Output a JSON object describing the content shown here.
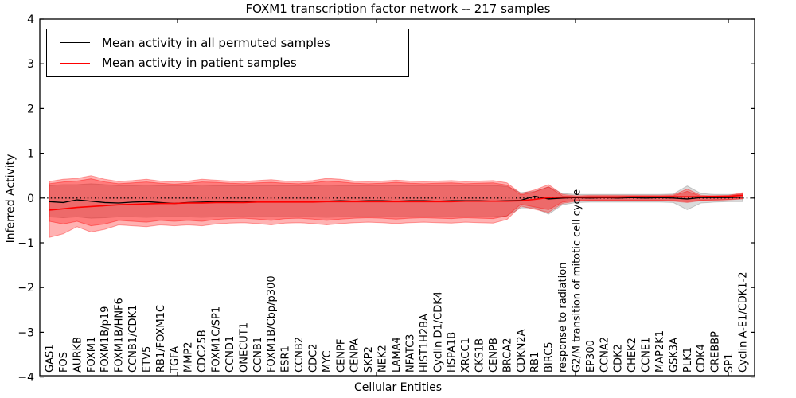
{
  "title": "FOXM1 transcription factor network -- 217 samples",
  "axes": {
    "xlabel": "Cellular Entities",
    "ylabel": "Inferred Activity",
    "y_ticks": [
      -4,
      -3,
      -2,
      -1,
      0,
      1,
      2,
      3,
      4
    ],
    "ylim": [
      -4,
      4
    ],
    "zero_line_style": "dotted"
  },
  "legend": {
    "entries": [
      {
        "label": "Mean activity in all permuted samples",
        "color": "#000000"
      },
      {
        "label": "Mean activity in patient samples",
        "color": "#ff0000"
      }
    ]
  },
  "colors": {
    "permuted_line": "#000000",
    "patient_line": "#ff0000",
    "patient_band_fill": "rgba(255,0,0,0.30)",
    "permuted_band_fill": "rgba(0,0,0,0.14)",
    "frame": "#000000"
  },
  "chart_data": {
    "type": "line",
    "title": "FOXM1 transcription factor network -- 217 samples",
    "xlabel": "Cellular Entities",
    "ylabel": "Inferred Activity",
    "ylim": [
      -4,
      4
    ],
    "grid": false,
    "legend_position": "upper left",
    "x_categories": [
      "GAS1",
      "FOS",
      "AURKB",
      "FOXM1",
      "FOXM1B/p19",
      "FOXM1B/HNF6",
      "CCNB1/CDK1",
      "ETV5",
      "RB1/FOXM1C",
      "TGFA",
      "MMP2",
      "CDC25B",
      "FOXM1C/SP1",
      "CCND1",
      "ONECUT1",
      "CCNB1",
      "FOXM1B/Cbp/p300",
      "ESR1",
      "CCNB2",
      "CDC2",
      "MYC",
      "CENPF",
      "CENPA",
      "SKP2",
      "NEK2",
      "LAMA4",
      "NFATC3",
      "HIST1H2BA",
      "Cyclin D1/CDK4",
      "HSPA1B",
      "XRCC1",
      "CKS1B",
      "CENPB",
      "BRCA2",
      "CDKN2A",
      "RB1",
      "BIRC5",
      "response to radiation",
      "G2/M transition of mitotic cell cycle",
      "EP300",
      "CCNA2",
      "CDK2",
      "CHEK2",
      "CCNE1",
      "MAP2K1",
      "GSK3A",
      "PLK1",
      "CDK4",
      "CREBBP",
      "SP1",
      "Cyclin A-E1/CDK1-2"
    ],
    "series": [
      {
        "name": "Mean activity in all permuted samples",
        "color": "#000000",
        "values": [
          -0.08,
          -0.1,
          -0.04,
          -0.07,
          -0.1,
          -0.11,
          -0.09,
          -0.08,
          -0.1,
          -0.12,
          -0.1,
          -0.09,
          -0.08,
          -0.08,
          -0.07,
          -0.08,
          -0.07,
          -0.08,
          -0.07,
          -0.08,
          -0.07,
          -0.06,
          -0.07,
          -0.06,
          -0.06,
          -0.07,
          -0.06,
          -0.06,
          -0.07,
          -0.06,
          -0.06,
          -0.06,
          -0.07,
          -0.06,
          -0.05,
          0.04,
          -0.02,
          0.0,
          0.01,
          0.0,
          0.01,
          0.0,
          0.01,
          0.0,
          0.01,
          0.0,
          -0.02,
          0.01,
          0.01,
          0.01,
          0.02
        ]
      },
      {
        "name": "Mean activity in patient samples",
        "color": "#ff0000",
        "values": [
          -0.27,
          -0.24,
          -0.21,
          -0.19,
          -0.17,
          -0.15,
          -0.14,
          -0.13,
          -0.12,
          -0.12,
          -0.11,
          -0.11,
          -0.1,
          -0.1,
          -0.1,
          -0.09,
          -0.09,
          -0.09,
          -0.09,
          -0.09,
          -0.08,
          -0.08,
          -0.08,
          -0.08,
          -0.08,
          -0.08,
          -0.08,
          -0.08,
          -0.08,
          -0.08,
          -0.07,
          -0.07,
          -0.07,
          -0.07,
          -0.06,
          -0.03,
          0.01,
          0.02,
          0.02,
          0.02,
          0.02,
          0.02,
          0.03,
          0.03,
          0.03,
          0.03,
          0.03,
          0.03,
          0.04,
          0.04,
          0.06
        ]
      }
    ],
    "bands": [
      {
        "name": "permuted-range",
        "fill": "rgba(0,0,0,0.14)",
        "edge": "rgba(0,0,0,0.18)",
        "upper": [
          0.28,
          0.3,
          0.3,
          0.32,
          0.3,
          0.28,
          0.28,
          0.29,
          0.28,
          0.28,
          0.28,
          0.29,
          0.28,
          0.28,
          0.28,
          0.28,
          0.28,
          0.28,
          0.28,
          0.28,
          0.29,
          0.28,
          0.28,
          0.28,
          0.28,
          0.28,
          0.28,
          0.28,
          0.28,
          0.28,
          0.28,
          0.28,
          0.28,
          0.26,
          0.12,
          0.15,
          0.25,
          0.1,
          0.08,
          0.08,
          0.08,
          0.08,
          0.08,
          0.08,
          0.08,
          0.09,
          0.27,
          0.1,
          0.08,
          0.08,
          0.08
        ],
        "lower": [
          -0.42,
          -0.44,
          -0.42,
          -0.45,
          -0.44,
          -0.42,
          -0.42,
          -0.43,
          -0.42,
          -0.42,
          -0.42,
          -0.43,
          -0.42,
          -0.42,
          -0.42,
          -0.42,
          -0.42,
          -0.42,
          -0.42,
          -0.42,
          -0.43,
          -0.42,
          -0.42,
          -0.42,
          -0.42,
          -0.42,
          -0.42,
          -0.42,
          -0.42,
          -0.42,
          -0.42,
          -0.42,
          -0.42,
          -0.4,
          -0.22,
          -0.22,
          -0.36,
          -0.15,
          -0.1,
          -0.09,
          -0.09,
          -0.09,
          -0.09,
          -0.09,
          -0.09,
          -0.1,
          -0.26,
          -0.11,
          -0.09,
          -0.08,
          -0.08
        ]
      },
      {
        "name": "patient-range-outer",
        "fill": "rgba(255,0,0,0.30)",
        "edge": "rgba(255,0,0,0.35)",
        "upper": [
          0.37,
          0.42,
          0.44,
          0.5,
          0.42,
          0.37,
          0.39,
          0.42,
          0.38,
          0.36,
          0.38,
          0.42,
          0.4,
          0.38,
          0.37,
          0.39,
          0.41,
          0.38,
          0.37,
          0.39,
          0.44,
          0.42,
          0.38,
          0.37,
          0.38,
          0.4,
          0.38,
          0.37,
          0.38,
          0.39,
          0.37,
          0.38,
          0.39,
          0.34,
          0.1,
          0.18,
          0.3,
          0.08,
          0.05,
          0.06,
          0.06,
          0.06,
          0.06,
          0.06,
          0.06,
          0.07,
          0.2,
          0.06,
          0.05,
          0.06,
          0.12
        ],
        "lower": [
          -0.88,
          -0.8,
          -0.64,
          -0.76,
          -0.7,
          -0.6,
          -0.62,
          -0.64,
          -0.6,
          -0.62,
          -0.6,
          -0.62,
          -0.58,
          -0.56,
          -0.55,
          -0.57,
          -0.6,
          -0.56,
          -0.55,
          -0.57,
          -0.6,
          -0.57,
          -0.55,
          -0.54,
          -0.55,
          -0.57,
          -0.55,
          -0.54,
          -0.55,
          -0.56,
          -0.54,
          -0.55,
          -0.56,
          -0.48,
          -0.18,
          -0.25,
          -0.32,
          -0.12,
          -0.07,
          -0.06,
          -0.06,
          -0.06,
          -0.06,
          -0.06,
          -0.06,
          -0.07,
          -0.1,
          -0.06,
          -0.05,
          -0.04,
          -0.02
        ]
      },
      {
        "name": "patient-range-inner",
        "fill": "rgba(255,0,0,0.30)",
        "edge": "rgba(255,0,0,0.40)",
        "upper": [
          0.32,
          0.36,
          0.38,
          0.43,
          0.36,
          0.32,
          0.34,
          0.36,
          0.33,
          0.31,
          0.33,
          0.36,
          0.35,
          0.33,
          0.32,
          0.34,
          0.35,
          0.33,
          0.32,
          0.34,
          0.38,
          0.36,
          0.33,
          0.32,
          0.33,
          0.35,
          0.33,
          0.32,
          0.33,
          0.34,
          0.32,
          0.33,
          0.34,
          0.29,
          0.07,
          0.14,
          0.25,
          0.05,
          0.03,
          0.04,
          0.04,
          0.04,
          0.04,
          0.04,
          0.04,
          0.05,
          0.15,
          0.04,
          0.03,
          0.04,
          0.1
        ],
        "lower": [
          -0.52,
          -0.58,
          -0.52,
          -0.62,
          -0.58,
          -0.5,
          -0.52,
          -0.54,
          -0.5,
          -0.52,
          -0.5,
          -0.52,
          -0.48,
          -0.46,
          -0.45,
          -0.47,
          -0.5,
          -0.46,
          -0.45,
          -0.47,
          -0.5,
          -0.47,
          -0.45,
          -0.44,
          -0.45,
          -0.47,
          -0.45,
          -0.44,
          -0.45,
          -0.46,
          -0.44,
          -0.45,
          -0.46,
          -0.4,
          -0.14,
          -0.2,
          -0.26,
          -0.09,
          -0.05,
          -0.05,
          -0.05,
          -0.05,
          -0.05,
          -0.05,
          -0.05,
          -0.05,
          -0.08,
          -0.05,
          -0.04,
          -0.03,
          -0.01
        ]
      }
    ],
    "zero_line": 0
  }
}
